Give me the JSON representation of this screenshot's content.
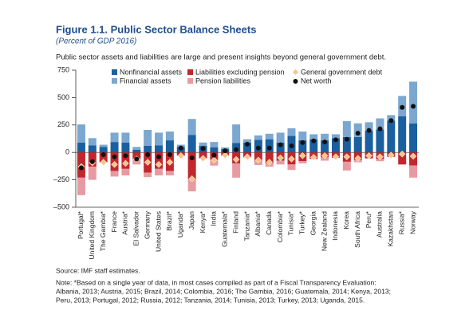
{
  "chart_data": {
    "type": "stacked_bar_markers",
    "title": "Figure 1.1. Public Sector Balance Sheets",
    "subtitle": "(Percent of GDP 2016)",
    "description": "Public sector assets and liabilities are large and present insights beyond general government debt.",
    "categories": [
      "Portugal*",
      "United Kingdom",
      "The Gambia*",
      "France",
      "Austria*",
      "El Salvador",
      "Germany",
      "United States",
      "Brazil*",
      "Uganda*",
      "Japan",
      "Kenya*",
      "India",
      "Guatemala*",
      "Finland",
      "Tanzania*",
      "Albania*",
      "Canada",
      "Colombia*",
      "Tunisia*",
      "Turkey*",
      "Georgia",
      "New Zealand",
      "Indonesia",
      "Korea",
      "South Africa",
      "Peru*",
      "Australia",
      "Kazakhstan",
      "Russia*",
      "Norway"
    ],
    "series": [
      {
        "name": "Nonfinancial assets",
        "color": "#1a5fa0",
        "kind": "bar",
        "values": [
          90,
          65,
          50,
          95,
          90,
          25,
          60,
          65,
          110,
          50,
          160,
          60,
          45,
          30,
          85,
          90,
          115,
          120,
          90,
          150,
          110,
          120,
          110,
          130,
          140,
          140,
          200,
          210,
          290,
          330,
          265
        ]
      },
      {
        "name": "Financial assets",
        "color": "#7ba7d0",
        "kind": "bar",
        "values": [
          165,
          65,
          20,
          85,
          90,
          25,
          145,
          115,
          80,
          20,
          145,
          30,
          50,
          15,
          170,
          30,
          40,
          50,
          90,
          70,
          80,
          45,
          60,
          35,
          145,
          125,
          75,
          100,
          50,
          185,
          380
        ]
      },
      {
        "name": "Liabilities excluding pension",
        "color": "#c1272d",
        "kind": "bar",
        "values": [
          -230,
          -130,
          -90,
          -170,
          -150,
          -60,
          -185,
          -150,
          -170,
          -30,
          -245,
          -55,
          -70,
          -30,
          -100,
          -45,
          -75,
          -100,
          -75,
          -110,
          -80,
          -60,
          -45,
          -50,
          -85,
          -70,
          -55,
          -60,
          -40,
          -110,
          -120
        ]
      },
      {
        "name": "Pension liabilities",
        "color": "#e89aa3",
        "kind": "bar",
        "values": [
          -160,
          -120,
          0,
          -50,
          -60,
          -50,
          -40,
          -60,
          -40,
          0,
          -110,
          0,
          -50,
          0,
          -130,
          0,
          -40,
          -30,
          -35,
          -50,
          -20,
          0,
          -30,
          0,
          -80,
          -20,
          0,
          -20,
          0,
          0,
          -110
        ]
      },
      {
        "name": "General government debt",
        "color": "#f5c58a",
        "kind": "diamond",
        "values": [
          -130,
          -95,
          -90,
          -110,
          -100,
          -60,
          -90,
          -110,
          -90,
          -30,
          -240,
          -55,
          -70,
          -25,
          -65,
          -40,
          -70,
          -90,
          -50,
          -60,
          -30,
          -45,
          -30,
          -40,
          -40,
          -55,
          -30,
          -40,
          -25,
          -15,
          -35
        ]
      },
      {
        "name": "Net worth",
        "color": "#111111",
        "kind": "dot",
        "values": [
          -140,
          -85,
          -20,
          -40,
          -30,
          -60,
          -20,
          -40,
          -20,
          40,
          -50,
          35,
          -25,
          15,
          25,
          75,
          40,
          40,
          70,
          60,
          90,
          105,
          95,
          115,
          120,
          175,
          200,
          215,
          290,
          410,
          420
        ]
      }
    ],
    "ylim": [
      -500,
      750
    ],
    "yticks": [
      {
        "value": -500,
        "label": "–500"
      },
      {
        "value": -250,
        "label": "–250"
      },
      0,
      250,
      500,
      750
    ],
    "source": "Source: IMF staff estimates.",
    "notes": [
      "Note: *Based on a single year of data, in most cases compiled as part of a Fiscal Transparency Evaluation:",
      "Albania, 2013; Austria, 2015; Brazil, 2014; Colombia, 2016; The Gambia, 2016; Guatemala, 2014; Kenya, 2013;",
      "Peru, 2013; Portugal, 2012; Russia, 2012; Tanzania, 2014; Tunisia, 2013; Turkey, 2013; Uganda, 2015."
    ]
  }
}
